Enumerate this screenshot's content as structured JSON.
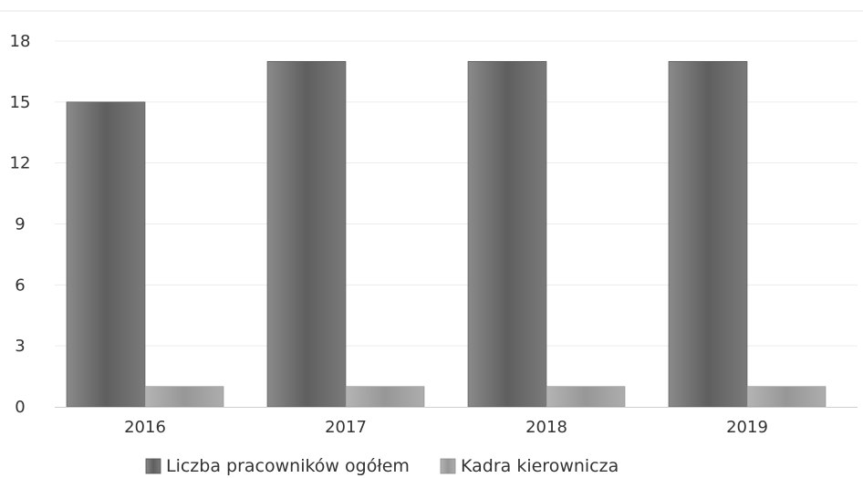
{
  "chart_data": {
    "type": "bar",
    "categories": [
      "2016",
      "2017",
      "2018",
      "2019"
    ],
    "series": [
      {
        "name": "Liczba pracowników ogółem",
        "values": [
          15,
          17,
          17,
          17
        ],
        "color": "#6e6e6e"
      },
      {
        "name": "Kadra kierownicza",
        "values": [
          1,
          1,
          1,
          1
        ],
        "color": "#a3a3a3"
      }
    ],
    "ylim": [
      0,
      18
    ],
    "yticks": [
      0,
      3,
      6,
      9,
      12,
      15,
      18
    ],
    "grid": true,
    "legend_position": "bottom-center"
  }
}
